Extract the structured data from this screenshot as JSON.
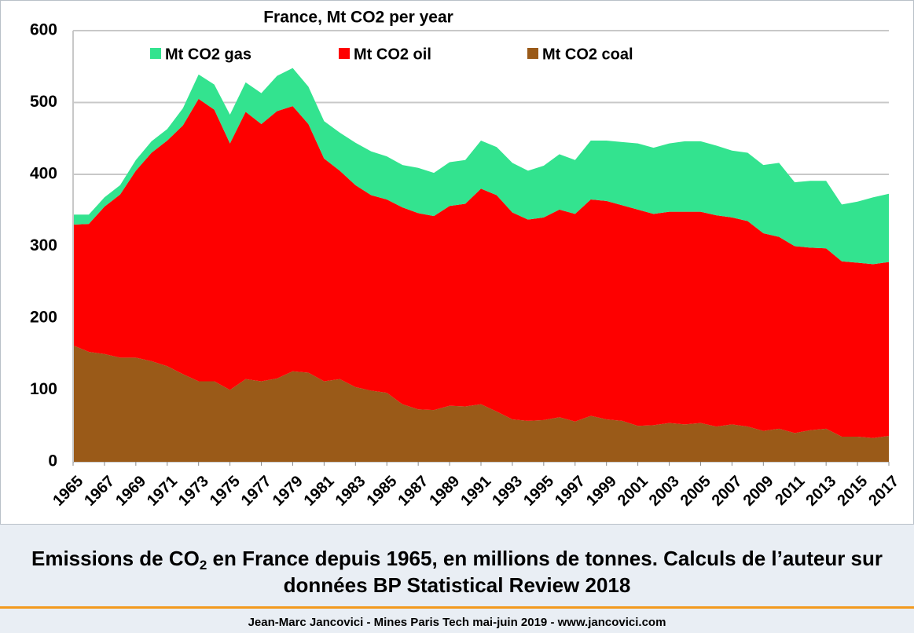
{
  "chart_data": {
    "type": "stacked_area",
    "title": "France, Mt CO2 per year",
    "x": [
      1965,
      1966,
      1967,
      1968,
      1969,
      1970,
      1971,
      1972,
      1973,
      1974,
      1975,
      1976,
      1977,
      1978,
      1979,
      1980,
      1981,
      1982,
      1983,
      1984,
      1985,
      1986,
      1987,
      1988,
      1989,
      1990,
      1991,
      1992,
      1993,
      1994,
      1995,
      1996,
      1997,
      1998,
      1999,
      2000,
      2001,
      2002,
      2003,
      2004,
      2005,
      2006,
      2007,
      2008,
      2009,
      2010,
      2011,
      2012,
      2013,
      2014,
      2015,
      2016,
      2017
    ],
    "xlim": [
      1965,
      2017
    ],
    "xticks": [
      1965,
      1967,
      1969,
      1971,
      1973,
      1975,
      1977,
      1979,
      1981,
      1983,
      1985,
      1987,
      1989,
      1991,
      1993,
      1995,
      1997,
      1999,
      2001,
      2003,
      2005,
      2007,
      2009,
      2011,
      2013,
      2015,
      2017
    ],
    "ylim": [
      0,
      600
    ],
    "yticks": [
      0,
      100,
      200,
      300,
      400,
      500,
      600
    ],
    "grid": true,
    "legend": "top",
    "series": [
      {
        "name": "Mt CO2 gas",
        "color": "#33e38f",
        "values": [
          14,
          13,
          13,
          13,
          15,
          16,
          16,
          24,
          34,
          35,
          40,
          41,
          43,
          49,
          53,
          52,
          52,
          53,
          59,
          61,
          60,
          59,
          63,
          60,
          61,
          61,
          67,
          67,
          69,
          68,
          72,
          77,
          75,
          82,
          84,
          88,
          92,
          92,
          95,
          98,
          98,
          97,
          93,
          95,
          95,
          103,
          89,
          93,
          94,
          79,
          85,
          93,
          95
        ]
      },
      {
        "name": "Mt CO2 oil",
        "color": "#fe0000",
        "values": [
          168,
          178,
          205,
          227,
          260,
          290,
          314,
          346,
          393,
          378,
          343,
          372,
          358,
          372,
          369,
          346,
          310,
          290,
          281,
          272,
          269,
          274,
          273,
          270,
          278,
          282,
          300,
          301,
          288,
          280,
          282,
          289,
          289,
          301,
          304,
          300,
          301,
          294,
          294,
          296,
          294,
          294,
          288,
          286,
          275,
          267,
          260,
          254,
          251,
          244,
          242,
          242,
          242
        ]
      },
      {
        "name": "Mt CO2 coal",
        "color": "#9a5a18",
        "values": [
          162,
          153,
          150,
          145,
          145,
          140,
          133,
          122,
          112,
          112,
          100,
          115,
          112,
          116,
          126,
          124,
          112,
          115,
          104,
          99,
          96,
          80,
          73,
          72,
          78,
          77,
          80,
          70,
          59,
          57,
          58,
          62,
          56,
          64,
          59,
          57,
          50,
          51,
          54,
          52,
          54,
          49,
          52,
          49,
          43,
          46,
          40,
          44,
          46,
          35,
          35,
          33,
          36
        ]
      }
    ]
  },
  "caption": {
    "before": "Emissions de CO",
    "subscript": "2",
    "after": " en France depuis 1965, en millions de tonnes. Calculs de l’auteur sur données BP Statistical Review 2018"
  },
  "footer": "Jean-Marc Jancovici - Mines Paris Tech mai-juin 2019 - www.jancovici.com"
}
